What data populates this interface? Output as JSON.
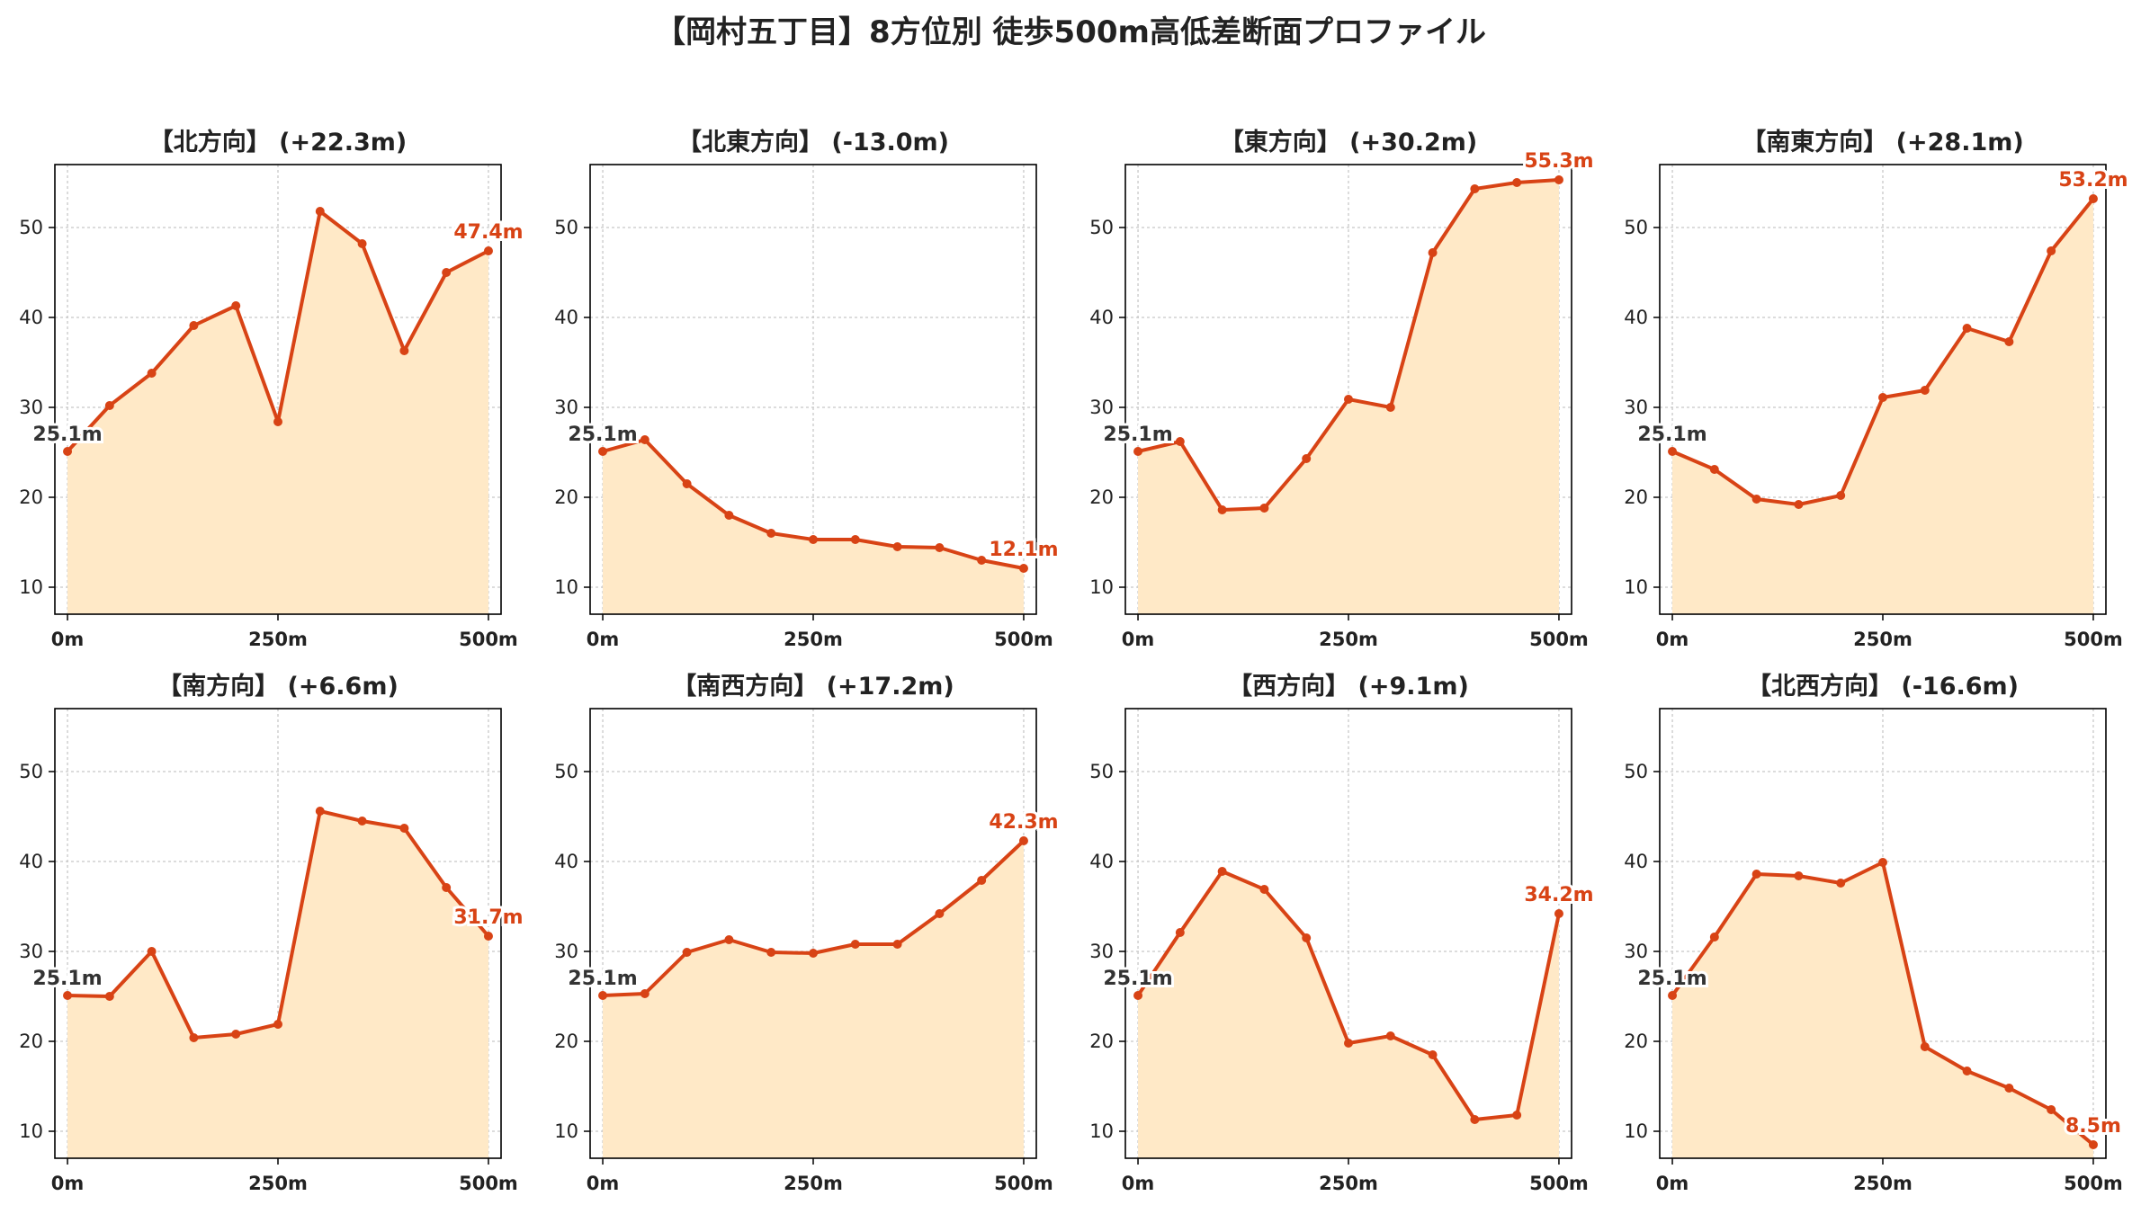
{
  "title": "【岡村五丁目】8方位別 徒歩500m高低差断面プロファイル",
  "colors": {
    "line": "#d84315",
    "fill": "#ffe9c7",
    "axis": "#000000",
    "grid": "#c8c8c8",
    "start_label": "#333333",
    "end_label": "#d84315"
  },
  "chart_data": [
    {
      "type": "area",
      "title": "【北方向】 (+22.3m)",
      "x": [
        0,
        50,
        100,
        150,
        200,
        250,
        300,
        350,
        400,
        450,
        500
      ],
      "y": [
        25.1,
        30.2,
        33.8,
        39.1,
        41.3,
        28.4,
        51.8,
        48.2,
        36.3,
        45.0,
        47.4
      ],
      "start_label": "25.1m",
      "end_label": "47.4m",
      "xticks": [
        "0m",
        "250m",
        "500m"
      ],
      "yticks": [
        "10",
        "20",
        "30",
        "40",
        "50"
      ],
      "ylim": [
        7,
        57
      ],
      "xlim": [
        -15,
        515
      ],
      "grid": true
    },
    {
      "type": "area",
      "title": "【北東方向】 (-13.0m)",
      "x": [
        0,
        50,
        100,
        150,
        200,
        250,
        300,
        350,
        400,
        450,
        500
      ],
      "y": [
        25.1,
        26.4,
        21.5,
        18.0,
        16.0,
        15.3,
        15.3,
        14.5,
        14.4,
        13.0,
        12.1
      ],
      "start_label": "25.1m",
      "end_label": "12.1m",
      "xticks": [
        "0m",
        "250m",
        "500m"
      ],
      "yticks": [
        "10",
        "20",
        "30",
        "40",
        "50"
      ],
      "ylim": [
        7,
        57
      ],
      "xlim": [
        -15,
        515
      ],
      "grid": true
    },
    {
      "type": "area",
      "title": "【東方向】 (+30.2m)",
      "x": [
        0,
        50,
        100,
        150,
        200,
        250,
        300,
        350,
        400,
        450,
        500
      ],
      "y": [
        25.1,
        26.2,
        18.6,
        18.8,
        24.3,
        30.9,
        30.0,
        47.2,
        54.3,
        55.0,
        55.3
      ],
      "start_label": "25.1m",
      "end_label": "55.3m",
      "xticks": [
        "0m",
        "250m",
        "500m"
      ],
      "yticks": [
        "10",
        "20",
        "30",
        "40",
        "50"
      ],
      "ylim": [
        7,
        57
      ],
      "xlim": [
        -15,
        515
      ],
      "grid": true
    },
    {
      "type": "area",
      "title": "【南東方向】 (+28.1m)",
      "x": [
        0,
        50,
        100,
        150,
        200,
        250,
        300,
        350,
        400,
        450,
        500
      ],
      "y": [
        25.1,
        23.1,
        19.8,
        19.2,
        20.2,
        31.1,
        31.9,
        38.8,
        37.3,
        47.4,
        53.2
      ],
      "start_label": "25.1m",
      "end_label": "53.2m",
      "xticks": [
        "0m",
        "250m",
        "500m"
      ],
      "yticks": [
        "10",
        "20",
        "30",
        "40",
        "50"
      ],
      "ylim": [
        7,
        57
      ],
      "xlim": [
        -15,
        515
      ],
      "grid": true
    },
    {
      "type": "area",
      "title": "【南方向】 (+6.6m)",
      "x": [
        0,
        50,
        100,
        150,
        200,
        250,
        300,
        350,
        400,
        450,
        500
      ],
      "y": [
        25.1,
        25.0,
        30.0,
        20.4,
        20.8,
        21.9,
        45.6,
        44.5,
        43.7,
        37.1,
        31.7
      ],
      "start_label": "25.1m",
      "end_label": "31.7m",
      "xticks": [
        "0m",
        "250m",
        "500m"
      ],
      "yticks": [
        "10",
        "20",
        "30",
        "40",
        "50"
      ],
      "ylim": [
        7,
        57
      ],
      "xlim": [
        -15,
        515
      ],
      "grid": true
    },
    {
      "type": "area",
      "title": "【南西方向】 (+17.2m)",
      "x": [
        0,
        50,
        100,
        150,
        200,
        250,
        300,
        350,
        400,
        450,
        500
      ],
      "y": [
        25.1,
        25.3,
        29.9,
        31.3,
        29.9,
        29.8,
        30.8,
        30.8,
        34.2,
        37.9,
        42.3
      ],
      "start_label": "25.1m",
      "end_label": "42.3m",
      "xticks": [
        "0m",
        "250m",
        "500m"
      ],
      "yticks": [
        "10",
        "20",
        "30",
        "40",
        "50"
      ],
      "ylim": [
        7,
        57
      ],
      "xlim": [
        -15,
        515
      ],
      "grid": true
    },
    {
      "type": "area",
      "title": "【西方向】 (+9.1m)",
      "x": [
        0,
        50,
        100,
        150,
        200,
        250,
        300,
        350,
        400,
        450,
        500
      ],
      "y": [
        25.1,
        32.1,
        38.9,
        36.9,
        31.5,
        19.8,
        20.6,
        18.5,
        11.3,
        11.8,
        34.2
      ],
      "start_label": "25.1m",
      "end_label": "34.2m",
      "xticks": [
        "0m",
        "250m",
        "500m"
      ],
      "yticks": [
        "10",
        "20",
        "30",
        "40",
        "50"
      ],
      "ylim": [
        7,
        57
      ],
      "xlim": [
        -15,
        515
      ],
      "grid": true
    },
    {
      "type": "area",
      "title": "【北西方向】 (-16.6m)",
      "x": [
        0,
        50,
        100,
        150,
        200,
        250,
        300,
        350,
        400,
        450,
        500
      ],
      "y": [
        25.1,
        31.6,
        38.6,
        38.4,
        37.6,
        39.9,
        19.4,
        16.7,
        14.8,
        12.4,
        8.5
      ],
      "start_label": "25.1m",
      "end_label": "8.5m",
      "xticks": [
        "0m",
        "250m",
        "500m"
      ],
      "yticks": [
        "10",
        "20",
        "30",
        "40",
        "50"
      ],
      "ylim": [
        7,
        57
      ],
      "xlim": [
        -15,
        515
      ],
      "grid": true
    }
  ]
}
